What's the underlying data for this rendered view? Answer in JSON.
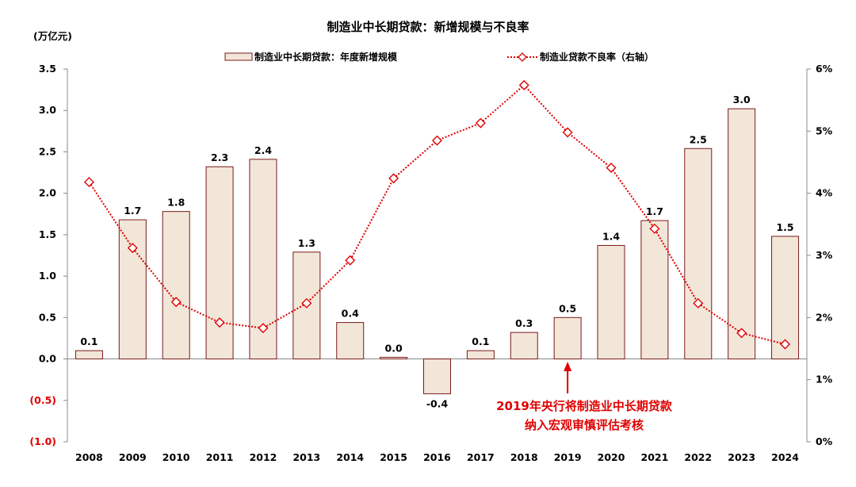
{
  "chart_data": {
    "type": "bar",
    "title": "制造业中长期贷款：新增规模与不良率",
    "ylabel": "(万亿元)",
    "ylim": [
      -1.0,
      3.5
    ],
    "y2lim": [
      0,
      6
    ],
    "y_ticks": [
      "3.5",
      "3.0",
      "2.5",
      "2.0",
      "1.5",
      "1.0",
      "0.5",
      "0.0",
      "(0.5)",
      "(1.0)"
    ],
    "y_tick_values": [
      3.5,
      3.0,
      2.5,
      2.0,
      1.5,
      1.0,
      0.5,
      0.0,
      -0.5,
      -1.0
    ],
    "y2_ticks": [
      "6%",
      "5%",
      "4%",
      "3%",
      "2%",
      "1%",
      "0%"
    ],
    "y2_tick_values": [
      6,
      5,
      4,
      3,
      2,
      1,
      0
    ],
    "categories": [
      "2008",
      "2009",
      "2010",
      "2011",
      "2012",
      "2013",
      "2014",
      "2015",
      "2016",
      "2017",
      "2018",
      "2019",
      "2020",
      "2021",
      "2022",
      "2023",
      "2024"
    ],
    "series": [
      {
        "name": "制造业中长期贷款：年度新增规模",
        "type": "bar",
        "axis": "left",
        "color": "#F2E6D9",
        "border": "#7A1A1A",
        "values": [
          0.1,
          1.7,
          1.8,
          2.3,
          2.4,
          1.3,
          0.4,
          0.0,
          -0.4,
          0.1,
          0.3,
          0.5,
          1.4,
          1.7,
          2.5,
          3.0,
          1.5
        ],
        "bar_heights": [
          0.1,
          1.68,
          1.78,
          2.32,
          2.41,
          1.29,
          0.44,
          0.02,
          -0.42,
          0.1,
          0.32,
          0.5,
          1.37,
          1.67,
          2.54,
          3.02,
          1.48
        ],
        "labels": [
          "0.1",
          "1.7",
          "1.8",
          "2.3",
          "2.4",
          "1.3",
          "0.4",
          "0.0",
          "-0.4",
          "0.1",
          "0.3",
          "0.5",
          "1.4",
          "1.7",
          "2.5",
          "3.0",
          "1.5"
        ]
      },
      {
        "name": "制造业贷款不良率（右轴）",
        "type": "line",
        "axis": "right",
        "color": "#E00000",
        "marker": "diamond",
        "values": [
          4.18,
          3.12,
          2.25,
          1.92,
          1.83,
          2.23,
          2.92,
          4.24,
          4.85,
          5.13,
          5.74,
          4.98,
          4.41,
          3.43,
          2.23,
          1.75,
          1.57
        ]
      }
    ],
    "annotation": {
      "lines": [
        "2019年央行将制造业中长期贷款",
        "纳入宏观审慎评估考核"
      ],
      "color": "#E00000",
      "target_category": "2019"
    }
  }
}
